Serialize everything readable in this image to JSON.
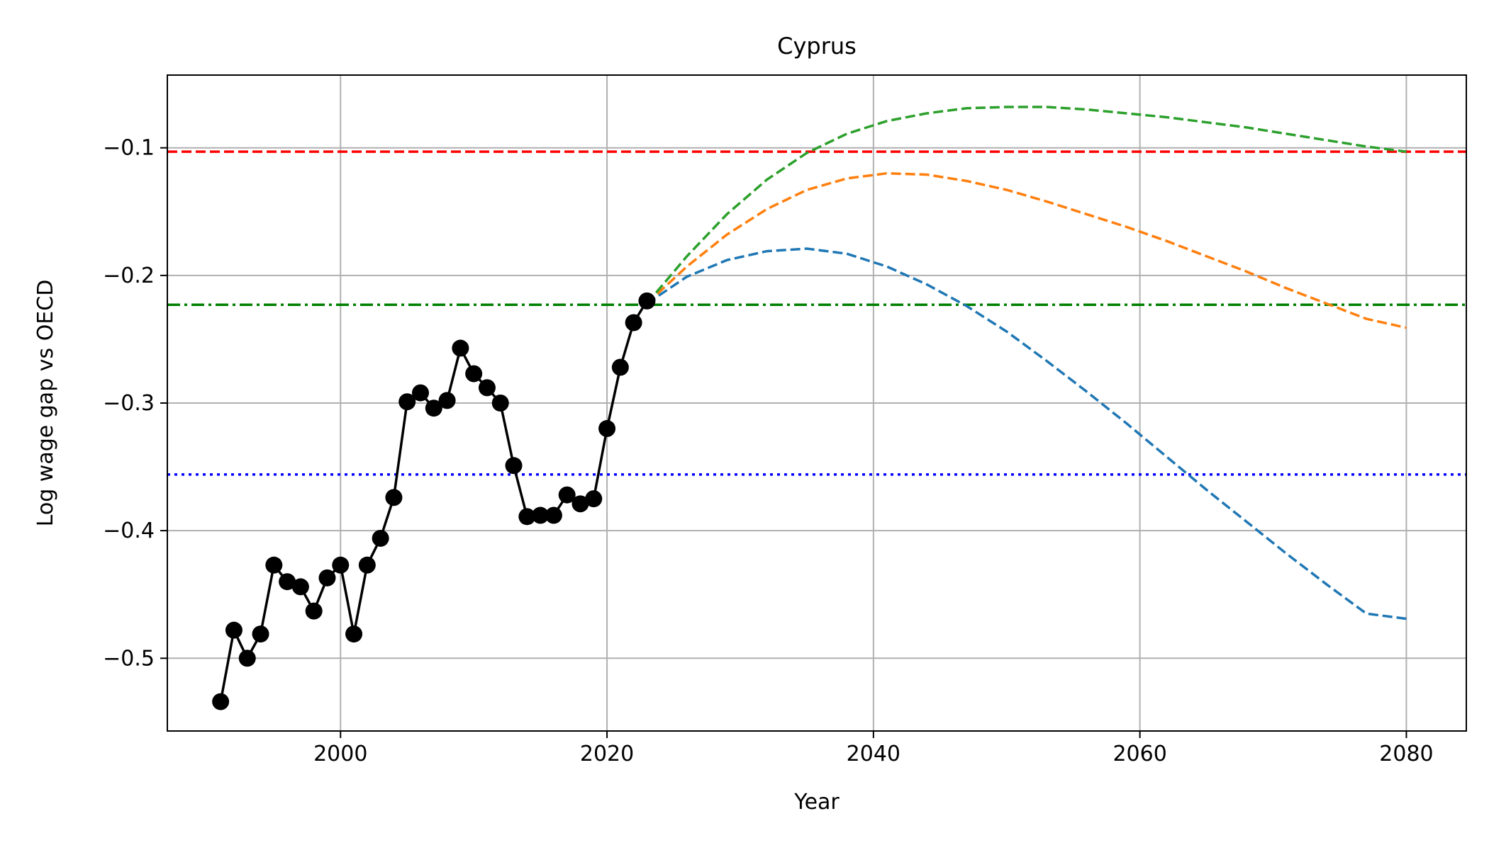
{
  "chart_data": {
    "type": "line",
    "title": "Cyprus",
    "xlabel": "Year",
    "ylabel": "Log wage gap vs OECD",
    "xlim": [
      1987,
      2084.5
    ],
    "ylim": [
      -0.557,
      -0.043
    ],
    "x_ticks": [
      {
        "value": 2000,
        "label": "2000"
      },
      {
        "value": 2020,
        "label": "2020"
      },
      {
        "value": 2040,
        "label": "2040"
      },
      {
        "value": 2060,
        "label": "2060"
      },
      {
        "value": 2080,
        "label": "2080"
      }
    ],
    "y_ticks": [
      {
        "value": -0.1,
        "label": "−0.1"
      },
      {
        "value": -0.2,
        "label": "−0.2"
      },
      {
        "value": -0.3,
        "label": "−0.3"
      },
      {
        "value": -0.4,
        "label": "−0.4"
      },
      {
        "value": -0.5,
        "label": "−0.5"
      }
    ],
    "grid": true,
    "historical": {
      "color": "#000000",
      "marker": "circle",
      "x": [
        1991,
        1992,
        1993,
        1994,
        1995,
        1996,
        1997,
        1998,
        1999,
        2000,
        2001,
        2002,
        2003,
        2004,
        2005,
        2006,
        2007,
        2008,
        2009,
        2010,
        2011,
        2012,
        2013,
        2014,
        2015,
        2016,
        2017,
        2018,
        2019,
        2020,
        2021,
        2022,
        2023
      ],
      "y": [
        -0.534,
        -0.478,
        -0.5,
        -0.481,
        -0.427,
        -0.44,
        -0.444,
        -0.463,
        -0.437,
        -0.427,
        -0.481,
        -0.427,
        -0.406,
        -0.374,
        -0.299,
        -0.292,
        -0.304,
        -0.298,
        -0.257,
        -0.277,
        -0.288,
        -0.3,
        -0.349,
        -0.389,
        -0.388,
        -0.388,
        -0.372,
        -0.379,
        -0.375,
        -0.32,
        -0.272,
        -0.237,
        -0.22
      ]
    },
    "projections": [
      {
        "color": "#1f77b4",
        "style": "dashed",
        "x": [
          2023,
          2026,
          2029,
          2032,
          2035,
          2038,
          2041,
          2044,
          2047,
          2050,
          2053,
          2056,
          2059,
          2062,
          2065,
          2068,
          2071,
          2074,
          2077,
          2080
        ],
        "y": [
          -0.222,
          -0.201,
          -0.188,
          -0.181,
          -0.179,
          -0.183,
          -0.193,
          -0.207,
          -0.224,
          -0.244,
          -0.267,
          -0.291,
          -0.316,
          -0.342,
          -0.368,
          -0.393,
          -0.418,
          -0.442,
          -0.465,
          -0.469
        ]
      },
      {
        "color": "#ff7f0e",
        "style": "dashed",
        "x": [
          2023,
          2026,
          2029,
          2032,
          2035,
          2038,
          2041,
          2044,
          2047,
          2050,
          2053,
          2056,
          2059,
          2062,
          2065,
          2068,
          2071,
          2074,
          2077,
          2080
        ],
        "y": [
          -0.222,
          -0.193,
          -0.168,
          -0.148,
          -0.133,
          -0.124,
          -0.12,
          -0.121,
          -0.126,
          -0.133,
          -0.142,
          -0.152,
          -0.162,
          -0.173,
          -0.185,
          -0.197,
          -0.21,
          -0.222,
          -0.234,
          -0.241
        ]
      },
      {
        "color": "#2ca02c",
        "style": "dashed",
        "x": [
          2023,
          2026,
          2029,
          2032,
          2035,
          2038,
          2041,
          2044,
          2047,
          2050,
          2053,
          2056,
          2059,
          2062,
          2065,
          2068,
          2071,
          2074,
          2077,
          2080
        ],
        "y": [
          -0.222,
          -0.185,
          -0.152,
          -0.125,
          -0.104,
          -0.089,
          -0.079,
          -0.073,
          -0.069,
          -0.068,
          -0.068,
          -0.07,
          -0.073,
          -0.076,
          -0.08,
          -0.084,
          -0.089,
          -0.094,
          -0.099,
          -0.103
        ]
      }
    ],
    "reference_lines": [
      {
        "y": -0.103,
        "color": "#ff0000",
        "style": "dashed"
      },
      {
        "y": -0.223,
        "color": "#008000",
        "style": "dashdot"
      },
      {
        "y": -0.356,
        "color": "#0000ff",
        "style": "dotted"
      }
    ]
  }
}
